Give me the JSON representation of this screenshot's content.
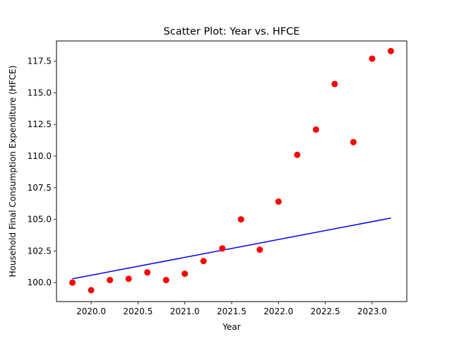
{
  "chart_data": {
    "type": "scatter",
    "title": "Scatter Plot: Year vs. HFCE",
    "xlabel": "Year",
    "ylabel": "Household Final Consumption Expenditure (HFCE)",
    "xlim": [
      2019.63,
      2023.37
    ],
    "ylim": [
      98.5,
      119.1
    ],
    "xticks": [
      2020.0,
      2020.5,
      2021.0,
      2021.5,
      2022.0,
      2022.5,
      2023.0
    ],
    "xtick_labels": [
      "2020.0",
      "2020.5",
      "2021.0",
      "2021.5",
      "2022.0",
      "2022.5",
      "2023.0"
    ],
    "yticks": [
      100.0,
      102.5,
      105.0,
      107.5,
      110.0,
      112.5,
      115.0,
      117.5
    ],
    "ytick_labels": [
      "100.0",
      "102.5",
      "105.0",
      "107.5",
      "110.0",
      "112.5",
      "115.0",
      "117.5"
    ],
    "grid": false,
    "series": [
      {
        "kind": "points",
        "color": "#ff0000",
        "x": [
          2019.8,
          2020.0,
          2020.2,
          2020.4,
          2020.6,
          2020.8,
          2021.0,
          2021.2,
          2021.4,
          2021.6,
          2021.8,
          2022.0,
          2022.2,
          2022.4,
          2022.6,
          2022.8,
          2023.0,
          2023.2
        ],
        "y": [
          100.0,
          99.4,
          100.2,
          100.3,
          100.8,
          100.2,
          100.7,
          101.7,
          102.7,
          105.0,
          102.6,
          106.4,
          110.1,
          112.1,
          115.7,
          111.1,
          117.7,
          118.3
        ]
      },
      {
        "kind": "line",
        "color": "#0000ff",
        "x": [
          2019.8,
          2023.2
        ],
        "y": [
          100.3,
          105.1
        ]
      }
    ]
  }
}
